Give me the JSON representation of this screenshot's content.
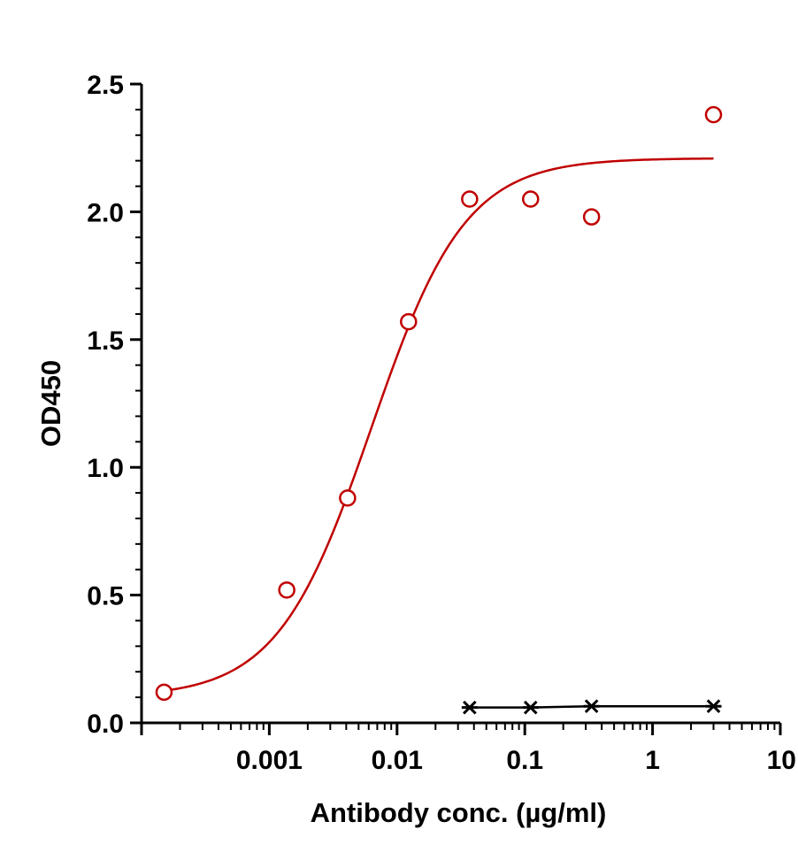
{
  "chart_data": {
    "type": "scatter",
    "title": "",
    "xlabel": "Antibody conc. (µg/ml)",
    "ylabel": "OD450",
    "x_scale": "log",
    "xlim": [
      0.0001,
      10
    ],
    "ylim": [
      0,
      2.5
    ],
    "x_ticks": [
      {
        "value": 0.001,
        "label": "0.001"
      },
      {
        "value": 0.01,
        "label": "0.01"
      },
      {
        "value": 0.1,
        "label": "0.1"
      },
      {
        "value": 1,
        "label": "1"
      },
      {
        "value": 10,
        "label": "10"
      }
    ],
    "y_ticks": [
      {
        "value": 0,
        "label": "0.0"
      },
      {
        "value": 0.5,
        "label": "0.5"
      },
      {
        "value": 1.0,
        "label": "1.0"
      },
      {
        "value": 1.5,
        "label": "1.5"
      },
      {
        "value": 2.0,
        "label": "2.0"
      },
      {
        "value": 2.5,
        "label": "2.5"
      }
    ],
    "grid": false,
    "legend": "none",
    "series": [
      {
        "marker": "open-circle",
        "color": "#c00000",
        "points": [
          {
            "x": 0.00015,
            "y": 0.12
          },
          {
            "x": 0.00137,
            "y": 0.52
          },
          {
            "x": 0.0041,
            "y": 0.88
          },
          {
            "x": 0.0123,
            "y": 1.57
          },
          {
            "x": 0.037,
            "y": 2.05
          },
          {
            "x": 0.111,
            "y": 2.05
          },
          {
            "x": 0.333,
            "y": 1.98
          },
          {
            "x": 3.0,
            "y": 2.38
          }
        ],
        "fit": {
          "type": "4PL",
          "bottom": 0.1,
          "top": 2.21,
          "ec50": 0.0063,
          "hill": 1.18,
          "x_range": [
            0.00015,
            3.0
          ]
        }
      },
      {
        "marker": "asterisk",
        "color": "#000000",
        "connected": true,
        "points": [
          {
            "x": 0.037,
            "y": 0.06
          },
          {
            "x": 0.111,
            "y": 0.06
          },
          {
            "x": 0.333,
            "y": 0.065
          },
          {
            "x": 3.0,
            "y": 0.065
          }
        ]
      }
    ]
  }
}
